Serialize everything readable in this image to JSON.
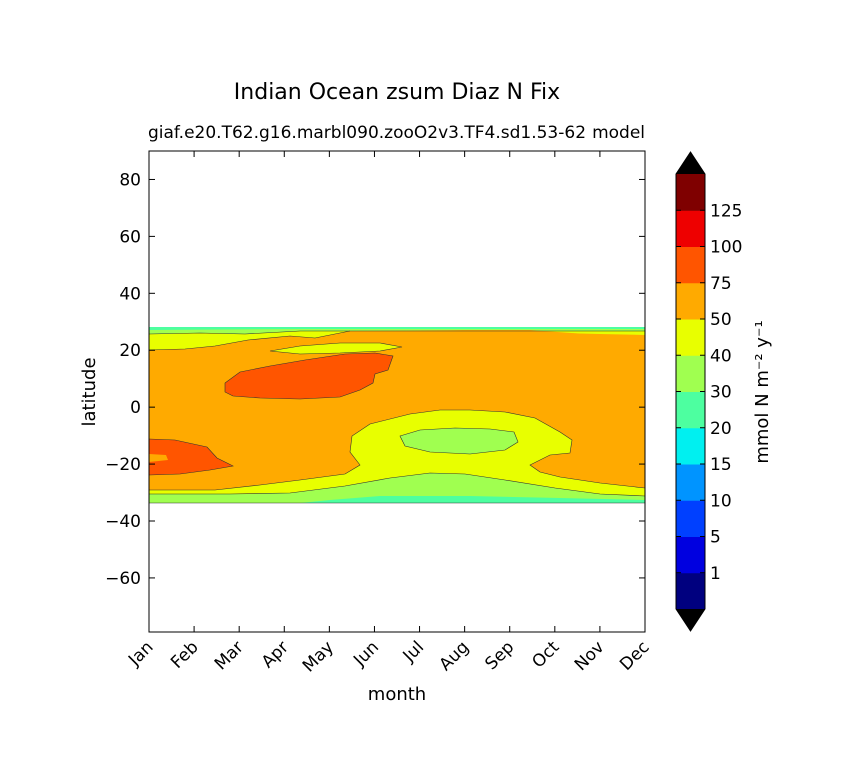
{
  "chart_data": {
    "type": "contourf",
    "title": "Indian Ocean zsum Diaz N Fix",
    "subtitle_left": "giaf.e20.T62.g16.marbl090.zooO2v3.TF4.sd1.53-62",
    "subtitle_right": "model",
    "xlabel": "month",
    "ylabel": "latitude",
    "x_ticks": [
      "Jan",
      "Feb",
      "Mar",
      "Apr",
      "May",
      "Jun",
      "Jul",
      "Aug",
      "Sep",
      "Oct",
      "Nov",
      "Dec"
    ],
    "y_ticks": [
      80,
      60,
      40,
      20,
      0,
      -20,
      -40,
      -60
    ],
    "ylim": [
      -79,
      90
    ],
    "data_lat_range": [
      -34,
      27
    ],
    "colorbar": {
      "label": "mmol N m⁻² y⁻¹",
      "levels": [
        "1",
        "5",
        "10",
        "15",
        "20",
        "30",
        "40",
        "50",
        "75",
        "100",
        "125"
      ],
      "colors": [
        "#00007f",
        "#0000e0",
        "#0040ff",
        "#0094ff",
        "#00f0f0",
        "#4dffa0",
        "#a0ff50",
        "#e8ff00",
        "#ffaa00",
        "#ff5500",
        "#ee0000",
        "#7f0000"
      ],
      "extend": "both"
    },
    "regions": [
      {
        "name": "band-20-30",
        "color": "#4dffa0",
        "min": 20,
        "max": 30
      },
      {
        "name": "band-30-40",
        "color": "#a0ff50",
        "min": 30,
        "max": 40
      },
      {
        "name": "band-40-50",
        "color": "#e8ff00",
        "min": 40,
        "max": 50
      },
      {
        "name": "band-50-75",
        "color": "#ffaa00",
        "min": 50,
        "max": 75
      },
      {
        "name": "band-75-100",
        "color": "#ff5500",
        "min": 75,
        "max": 100
      }
    ]
  }
}
